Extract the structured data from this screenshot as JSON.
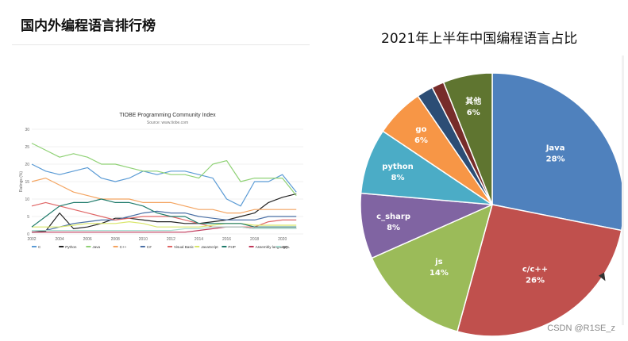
{
  "slide": {
    "title": "国内外编程语言排行榜",
    "watermark": "CSDN @R1SE_z"
  },
  "chart_data": [
    {
      "type": "line",
      "title": "TIOBE Programming Community Index",
      "subtitle": "Source: www.tiobe.com",
      "ylabel": "Ratings (%)",
      "xlabel": "",
      "ylim": [
        0,
        30
      ],
      "yticks": [
        "0",
        "5",
        "10",
        "15",
        "20",
        "25",
        "30"
      ],
      "xlim": [
        2002,
        2021.5
      ],
      "xticks": [
        "2002",
        "2004",
        "2006",
        "2008",
        "2010",
        "2012",
        "2014",
        "2016",
        "2018",
        "2020"
      ],
      "xtick_values": [
        2002,
        2004,
        2006,
        2008,
        2010,
        2012,
        2014,
        2016,
        2018,
        2020
      ],
      "grid": true,
      "legend_position": "bottom",
      "series": [
        {
          "name": "C",
          "color": "#5b9bd5",
          "x": [
            2002,
            2003,
            2004,
            2005,
            2006,
            2007,
            2008,
            2009,
            2010,
            2011,
            2012,
            2013,
            2014,
            2015,
            2016,
            2017,
            2018,
            2019,
            2020,
            2021
          ],
          "values": [
            20,
            18,
            17,
            18,
            19,
            16,
            15,
            16,
            18,
            17,
            18,
            18,
            17,
            16,
            10,
            8,
            15,
            15,
            17,
            12
          ]
        },
        {
          "name": "Python",
          "color": "#222222",
          "x": [
            2002,
            2003,
            2004,
            2005,
            2006,
            2007,
            2008,
            2009,
            2010,
            2011,
            2012,
            2013,
            2014,
            2015,
            2016,
            2017,
            2018,
            2019,
            2020,
            2021
          ],
          "values": [
            0.5,
            0.8,
            6,
            1.5,
            2,
            3,
            4.5,
            4.5,
            4,
            3.5,
            3.5,
            3,
            3,
            3.5,
            4,
            5,
            6,
            9,
            10.5,
            11.5
          ]
        },
        {
          "name": "Java",
          "color": "#8fd175",
          "x": [
            2002,
            2003,
            2004,
            2005,
            2006,
            2007,
            2008,
            2009,
            2010,
            2011,
            2012,
            2013,
            2014,
            2015,
            2016,
            2017,
            2018,
            2019,
            2020,
            2021
          ],
          "values": [
            26,
            24,
            22,
            23,
            22,
            20,
            20,
            19,
            18,
            18,
            17,
            17,
            16,
            20,
            21,
            15,
            16,
            16,
            16,
            11
          ]
        },
        {
          "name": "C++",
          "color": "#f4a460",
          "x": [
            2002,
            2003,
            2004,
            2005,
            2006,
            2007,
            2008,
            2009,
            2010,
            2011,
            2012,
            2013,
            2014,
            2015,
            2016,
            2017,
            2018,
            2019,
            2020,
            2021
          ],
          "values": [
            15,
            16,
            14,
            12,
            11,
            10,
            10,
            10,
            9,
            9,
            9,
            8,
            7,
            7,
            6,
            6,
            7,
            7,
            7,
            7
          ]
        },
        {
          "name": "C#",
          "color": "#4a6fa5",
          "x": [
            2002,
            2003,
            2004,
            2005,
            2006,
            2007,
            2008,
            2009,
            2010,
            2011,
            2012,
            2013,
            2014,
            2015,
            2016,
            2017,
            2018,
            2019,
            2020,
            2021
          ],
          "values": [
            1,
            1,
            2,
            3,
            3.5,
            4,
            4,
            5,
            6,
            6.5,
            6,
            6,
            5,
            4.5,
            4,
            4,
            4,
            5,
            5,
            5
          ]
        },
        {
          "name": "Visual Basic",
          "color": "#e06666",
          "x": [
            2002,
            2003,
            2004,
            2005,
            2006,
            2007,
            2008,
            2009,
            2010,
            2011,
            2012,
            2013,
            2014,
            2015,
            2016,
            2017,
            2018,
            2019,
            2020,
            2021
          ],
          "values": [
            8,
            9,
            8,
            7,
            6,
            5,
            4,
            4.5,
            5,
            5,
            5,
            4,
            3,
            2,
            2,
            2,
            2,
            3.5,
            4,
            4
          ]
        },
        {
          "name": "JavaScript",
          "color": "#d9e66a",
          "x": [
            2002,
            2003,
            2004,
            2005,
            2006,
            2007,
            2008,
            2009,
            2010,
            2011,
            2012,
            2013,
            2014,
            2015,
            2016,
            2017,
            2018,
            2019,
            2020,
            2021
          ],
          "values": [
            2,
            2,
            2,
            2.5,
            3,
            3,
            3,
            3.5,
            3,
            2,
            2,
            2,
            2,
            2.5,
            3,
            3,
            2.5,
            2.5,
            2.5,
            2.5
          ]
        },
        {
          "name": "PHP",
          "color": "#1e7a6a",
          "x": [
            2002,
            2003,
            2004,
            2005,
            2006,
            2007,
            2008,
            2009,
            2010,
            2011,
            2012,
            2013,
            2014,
            2015,
            2016,
            2017,
            2018,
            2019,
            2020,
            2021
          ],
          "values": [
            2,
            5,
            8,
            9,
            9,
            10,
            9,
            9,
            8,
            6,
            5,
            5,
            3,
            3,
            3,
            3,
            2,
            2,
            2,
            2
          ]
        },
        {
          "name": "Assembly language",
          "color": "#c0395a",
          "x": [
            2002,
            2003,
            2004,
            2005,
            2006,
            2007,
            2008,
            2009,
            2010,
            2011,
            2012,
            2013,
            2014,
            2015,
            2016,
            2017,
            2018,
            2019,
            2020,
            2021
          ],
          "values": [
            0.5,
            0.5,
            0.5,
            0.5,
            0.5,
            0.5,
            0.5,
            0.5,
            0.5,
            0.5,
            0.5,
            0.5,
            1,
            1.5,
            2,
            2,
            1.5,
            1.5,
            1.5,
            1.5
          ]
        },
        {
          "name": "SQL",
          "color": "#a8dcd0",
          "x": [
            2002,
            2003,
            2004,
            2005,
            2006,
            2007,
            2008,
            2009,
            2010,
            2011,
            2012,
            2013,
            2014,
            2015,
            2016,
            2017,
            2018,
            2019,
            2020,
            2021
          ],
          "values": [
            1,
            1,
            1,
            1,
            1,
            1,
            1,
            1,
            1,
            1,
            1,
            1.5,
            1.5,
            2,
            2,
            2,
            1.5,
            1.5,
            1.5,
            1.5
          ]
        }
      ]
    },
    {
      "type": "pie",
      "title": "2021年上半年中国编程语言占比",
      "slices": [
        {
          "label": "Java",
          "value": 28,
          "display": "28%",
          "color": "#4f81bd"
        },
        {
          "label": "c/c++",
          "value": 26,
          "display": "26%",
          "color": "#c0504d"
        },
        {
          "label": "js",
          "value": 14,
          "display": "14%",
          "color": "#9bbb59"
        },
        {
          "label": "c_sharp",
          "value": 8,
          "display": "8%",
          "color": "#8064a2"
        },
        {
          "label": "python",
          "value": 8,
          "display": "8%",
          "color": "#4bacc6"
        },
        {
          "label": "go",
          "value": 6,
          "display": "6%",
          "color": "#f79646"
        },
        {
          "label": "",
          "value": 2,
          "display": "",
          "color": "#2c4d75"
        },
        {
          "label": "",
          "value": 1.5,
          "display": "",
          "color": "#772c2a"
        },
        {
          "label": "其他",
          "value": 6,
          "display": "6%",
          "color": "#5f7530"
        }
      ]
    }
  ]
}
